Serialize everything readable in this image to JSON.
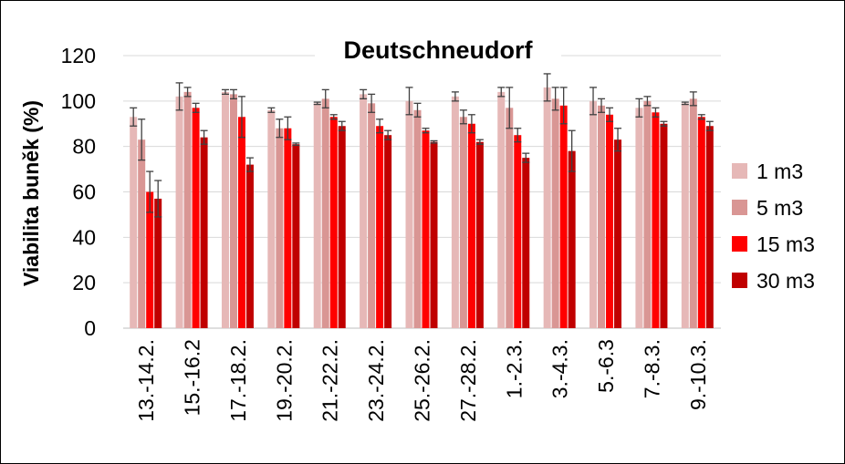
{
  "chart_data": {
    "type": "bar",
    "title": "Deutschneudorf",
    "y_label": "Viabilita buněk (%)",
    "categories": [
      "13.-14.2.",
      "15.-16.2",
      "17.-18.2.",
      "19.-20.2.",
      "21.-22.2.",
      "23.-24.2.",
      "25.-26.2.",
      "27.-28.2.",
      "1.-2.3.",
      "3.-4.3.",
      "5.-6.3",
      "7.-8.3.",
      "9.-10.3."
    ],
    "series": [
      {
        "name": "1 m3",
        "color": "#e6b8b7",
        "values": [
          93,
          102,
          104,
          96,
          99,
          103,
          100,
          102,
          104,
          106,
          100,
          97,
          99
        ],
        "errors": [
          4,
          6,
          1,
          1,
          0.5,
          2,
          6,
          2,
          2,
          6,
          6,
          4,
          0.5
        ]
      },
      {
        "name": "5 m3",
        "color": "#d99694",
        "values": [
          83,
          104,
          103,
          88,
          101,
          99,
          96,
          93,
          97,
          101,
          98,
          100,
          101
        ],
        "errors": [
          9,
          2,
          2,
          4,
          4,
          4,
          3,
          3,
          9,
          5,
          3,
          2,
          3
        ]
      },
      {
        "name": "15 m3",
        "color": "#ff0000",
        "values": [
          60,
          97,
          93,
          88,
          93,
          89,
          87,
          90,
          85,
          98,
          94,
          95,
          93
        ],
        "errors": [
          9,
          2,
          9,
          5,
          1,
          3,
          1,
          4,
          3,
          8,
          3,
          2,
          1
        ]
      },
      {
        "name": "30 m3",
        "color": "#c00000",
        "values": [
          57,
          84,
          72,
          81,
          89,
          85,
          82,
          82,
          75,
          78,
          83,
          90,
          89
        ],
        "errors": [
          8,
          3,
          3,
          0.5,
          2,
          2,
          0.5,
          1,
          2,
          9,
          5,
          1,
          2
        ]
      }
    ],
    "ylim": [
      0,
      120
    ],
    "yticks": [
      0,
      20,
      40,
      60,
      80,
      100,
      120
    ],
    "grid": true,
    "legend": "right"
  }
}
